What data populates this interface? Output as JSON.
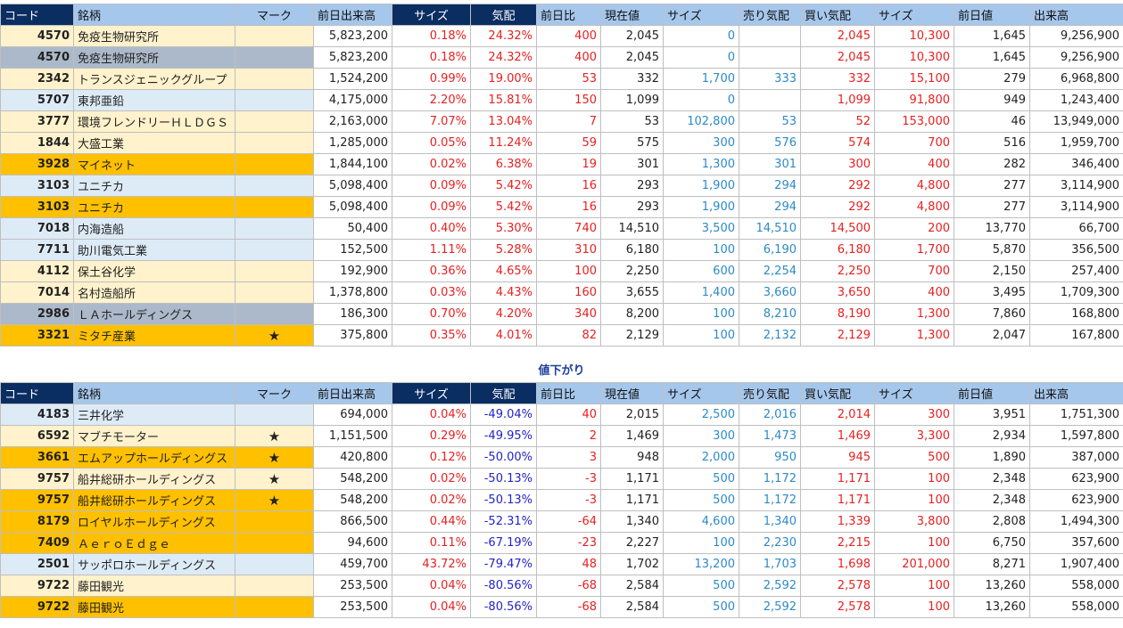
{
  "headers": [
    "コード",
    "銘柄",
    "マーク",
    "前日出来高",
    "サイズ",
    "気配",
    "前日比",
    "現在値",
    "サイズ",
    "売り気配",
    "買い気配",
    "サイズ",
    "前日値",
    "出来高"
  ],
  "section2_title": "値下がり",
  "colors": {
    "header_dark": "#0a2d62",
    "header_light": "#a6c7ec",
    "row_cream": "#fff2cc",
    "row_orange": "#ffc000",
    "row_lightblue": "#ddebf7",
    "row_gray": "#acb9ca",
    "text_red": "#e82020",
    "text_blue": "#2c8ac6",
    "text_darkblue": "#2323c8"
  },
  "section1": [
    {
      "code": "4570",
      "name": "免疫生物研究所",
      "mark": "",
      "prev_vol": "5,823,200",
      "size1": "0.18%",
      "quote": "24.32%",
      "change": "400",
      "price": "2,045",
      "size2": "0",
      "ask": "",
      "bid": "2,045",
      "size3": "10,300",
      "prev_close": "1,645",
      "volume": "9,256,900",
      "bg": "cream"
    },
    {
      "code": "4570",
      "name": "免疫生物研究所",
      "mark": "",
      "prev_vol": "5,823,200",
      "size1": "0.18%",
      "quote": "24.32%",
      "change": "400",
      "price": "2,045",
      "size2": "0",
      "ask": "",
      "bid": "2,045",
      "size3": "10,300",
      "prev_close": "1,645",
      "volume": "9,256,900",
      "bg": "gray"
    },
    {
      "code": "2342",
      "name": "トランスジェニックグループ",
      "mark": "",
      "prev_vol": "1,524,200",
      "size1": "0.99%",
      "quote": "19.00%",
      "change": "53",
      "price": "332",
      "size2": "1,700",
      "ask": "333",
      "bid": "332",
      "size3": "15,100",
      "prev_close": "279",
      "volume": "6,968,800",
      "bg": "cream"
    },
    {
      "code": "5707",
      "name": "東邦亜鉛",
      "mark": "",
      "prev_vol": "4,175,000",
      "size1": "2.20%",
      "quote": "15.81%",
      "change": "150",
      "price": "1,099",
      "size2": "0",
      "ask": "",
      "bid": "1,099",
      "size3": "91,800",
      "prev_close": "949",
      "volume": "1,243,400",
      "bg": "lightblue"
    },
    {
      "code": "3777",
      "name": "環境フレンドリーＨＬＤＧＳ",
      "mark": "",
      "prev_vol": "2,163,000",
      "size1": "7.07%",
      "quote": "13.04%",
      "change": "7",
      "price": "53",
      "size2": "102,800",
      "ask": "53",
      "bid": "52",
      "size3": "153,000",
      "prev_close": "46",
      "volume": "13,949,000",
      "bg": "cream"
    },
    {
      "code": "1844",
      "name": "大盛工業",
      "mark": "",
      "prev_vol": "1,285,000",
      "size1": "0.05%",
      "quote": "11.24%",
      "change": "59",
      "price": "575",
      "size2": "300",
      "ask": "576",
      "bid": "574",
      "size3": "700",
      "prev_close": "516",
      "volume": "1,959,700",
      "bg": "cream"
    },
    {
      "code": "3928",
      "name": "マイネット",
      "mark": "",
      "prev_vol": "1,844,100",
      "size1": "0.02%",
      "quote": "6.38%",
      "change": "19",
      "price": "301",
      "size2": "1,300",
      "ask": "301",
      "bid": "300",
      "size3": "400",
      "prev_close": "282",
      "volume": "346,400",
      "bg": "orange"
    },
    {
      "code": "3103",
      "name": "ユニチカ",
      "mark": "",
      "prev_vol": "5,098,400",
      "size1": "0.09%",
      "quote": "5.42%",
      "change": "16",
      "price": "293",
      "size2": "1,900",
      "ask": "294",
      "bid": "292",
      "size3": "4,800",
      "prev_close": "277",
      "volume": "3,114,900",
      "bg": "lightblue"
    },
    {
      "code": "3103",
      "name": "ユニチカ",
      "mark": "",
      "prev_vol": "5,098,400",
      "size1": "0.09%",
      "quote": "5.42%",
      "change": "16",
      "price": "293",
      "size2": "1,900",
      "ask": "294",
      "bid": "292",
      "size3": "4,800",
      "prev_close": "277",
      "volume": "3,114,900",
      "bg": "orange"
    },
    {
      "code": "7018",
      "name": "内海造船",
      "mark": "",
      "prev_vol": "50,400",
      "size1": "0.40%",
      "quote": "5.30%",
      "change": "740",
      "price": "14,510",
      "size2": "3,500",
      "ask": "14,510",
      "bid": "14,500",
      "size3": "200",
      "prev_close": "13,770",
      "volume": "66,700",
      "bg": "lightblue"
    },
    {
      "code": "7711",
      "name": "助川電気工業",
      "mark": "",
      "prev_vol": "152,500",
      "size1": "1.11%",
      "quote": "5.28%",
      "change": "310",
      "price": "6,180",
      "size2": "100",
      "ask": "6,190",
      "bid": "6,180",
      "size3": "1,700",
      "prev_close": "5,870",
      "volume": "356,500",
      "bg": "lightblue"
    },
    {
      "code": "4112",
      "name": "保土谷化学",
      "mark": "",
      "prev_vol": "192,900",
      "size1": "0.36%",
      "quote": "4.65%",
      "change": "100",
      "price": "2,250",
      "size2": "600",
      "ask": "2,254",
      "bid": "2,250",
      "size3": "700",
      "prev_close": "2,150",
      "volume": "257,400",
      "bg": "cream"
    },
    {
      "code": "7014",
      "name": "名村造船所",
      "mark": "",
      "prev_vol": "1,378,800",
      "size1": "0.03%",
      "quote": "4.43%",
      "change": "160",
      "price": "3,655",
      "size2": "1,400",
      "ask": "3,660",
      "bid": "3,650",
      "size3": "400",
      "prev_close": "3,495",
      "volume": "1,709,300",
      "bg": "cream"
    },
    {
      "code": "2986",
      "name": "ＬＡホールディングス",
      "mark": "",
      "prev_vol": "186,300",
      "size1": "0.70%",
      "quote": "4.20%",
      "change": "340",
      "price": "8,200",
      "size2": "100",
      "ask": "8,210",
      "bid": "8,190",
      "size3": "1,300",
      "prev_close": "7,860",
      "volume": "168,800",
      "bg": "gray"
    },
    {
      "code": "3321",
      "name": "ミタチ産業",
      "mark": "★",
      "prev_vol": "375,800",
      "size1": "0.35%",
      "quote": "4.01%",
      "change": "82",
      "price": "2,129",
      "size2": "100",
      "ask": "2,132",
      "bid": "2,129",
      "size3": "1,300",
      "prev_close": "2,047",
      "volume": "167,800",
      "bg": "orange"
    }
  ],
  "section2": [
    {
      "code": "4183",
      "name": "三井化学",
      "mark": "",
      "prev_vol": "694,000",
      "size1": "0.04%",
      "quote": "-49.04%",
      "change": "40",
      "price": "2,015",
      "size2": "2,500",
      "ask": "2,016",
      "bid": "2,014",
      "size3": "300",
      "prev_close": "3,951",
      "volume": "1,751,300",
      "bg": "lightblue"
    },
    {
      "code": "6592",
      "name": "マブチモーター",
      "mark": "★",
      "prev_vol": "1,151,500",
      "size1": "0.29%",
      "quote": "-49.95%",
      "change": "2",
      "price": "1,469",
      "size2": "300",
      "ask": "1,473",
      "bid": "1,469",
      "size3": "3,300",
      "prev_close": "2,934",
      "volume": "1,597,800",
      "bg": "cream"
    },
    {
      "code": "3661",
      "name": "エムアップホールディングス",
      "mark": "★",
      "prev_vol": "420,800",
      "size1": "0.12%",
      "quote": "-50.00%",
      "change": "3",
      "price": "948",
      "size2": "2,000",
      "ask": "950",
      "bid": "945",
      "size3": "500",
      "prev_close": "1,890",
      "volume": "387,000",
      "bg": "orange"
    },
    {
      "code": "9757",
      "name": "船井総研ホールディングス",
      "mark": "★",
      "prev_vol": "548,200",
      "size1": "0.02%",
      "quote": "-50.13%",
      "change": "-3",
      "price": "1,171",
      "size2": "500",
      "ask": "1,172",
      "bid": "1,171",
      "size3": "100",
      "prev_close": "2,348",
      "volume": "623,900",
      "bg": "cream"
    },
    {
      "code": "9757",
      "name": "船井総研ホールディングス",
      "mark": "★",
      "prev_vol": "548,200",
      "size1": "0.02%",
      "quote": "-50.13%",
      "change": "-3",
      "price": "1,171",
      "size2": "500",
      "ask": "1,172",
      "bid": "1,171",
      "size3": "100",
      "prev_close": "2,348",
      "volume": "623,900",
      "bg": "orange"
    },
    {
      "code": "8179",
      "name": "ロイヤルホールディングス",
      "mark": "",
      "prev_vol": "866,500",
      "size1": "0.44%",
      "quote": "-52.31%",
      "change": "-64",
      "price": "1,340",
      "size2": "4,600",
      "ask": "1,340",
      "bid": "1,339",
      "size3": "3,800",
      "prev_close": "2,808",
      "volume": "1,494,300",
      "bg": "orange"
    },
    {
      "code": "7409",
      "name": "ＡｅｒｏＥｄｇｅ",
      "mark": "",
      "prev_vol": "94,600",
      "size1": "0.11%",
      "quote": "-67.19%",
      "change": "-23",
      "price": "2,227",
      "size2": "100",
      "ask": "2,230",
      "bid": "2,215",
      "size3": "100",
      "prev_close": "6,750",
      "volume": "357,600",
      "bg": "orange"
    },
    {
      "code": "2501",
      "name": "サッポロホールディングス",
      "mark": "",
      "prev_vol": "459,700",
      "size1": "43.72%",
      "quote": "-79.47%",
      "change": "48",
      "price": "1,702",
      "size2": "13,200",
      "ask": "1,703",
      "bid": "1,698",
      "size3": "201,000",
      "prev_close": "8,271",
      "volume": "1,907,400",
      "bg": "lightblue"
    },
    {
      "code": "9722",
      "name": "藤田観光",
      "mark": "",
      "prev_vol": "253,500",
      "size1": "0.04%",
      "quote": "-80.56%",
      "change": "-68",
      "price": "2,584",
      "size2": "500",
      "ask": "2,592",
      "bid": "2,578",
      "size3": "100",
      "prev_close": "13,260",
      "volume": "558,000",
      "bg": "cream"
    },
    {
      "code": "9722",
      "name": "藤田観光",
      "mark": "",
      "prev_vol": "253,500",
      "size1": "0.04%",
      "quote": "-80.56%",
      "change": "-68",
      "price": "2,584",
      "size2": "500",
      "ask": "2,592",
      "bid": "2,578",
      "size3": "100",
      "prev_close": "13,260",
      "volume": "558,000",
      "bg": "orange"
    }
  ]
}
